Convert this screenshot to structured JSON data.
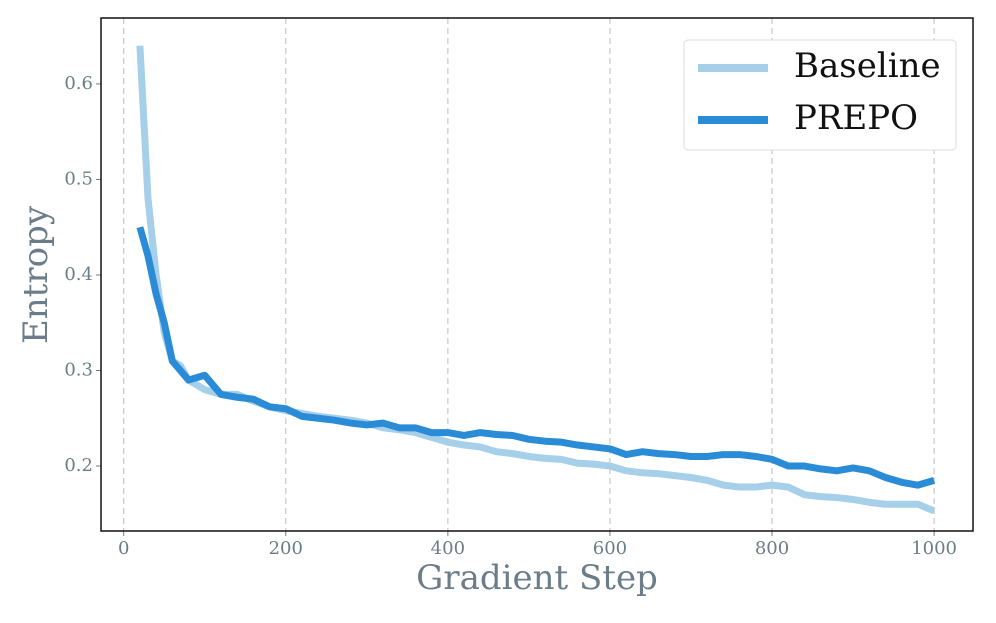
{
  "chart_data": {
    "type": "line",
    "x_label": "Gradient Step",
    "y_label": "Entropy",
    "x": [
      20,
      30,
      40,
      50,
      60,
      70,
      80,
      100,
      120,
      140,
      160,
      180,
      200,
      220,
      240,
      260,
      280,
      300,
      320,
      340,
      360,
      380,
      400,
      420,
      440,
      460,
      480,
      500,
      520,
      540,
      560,
      580,
      600,
      620,
      640,
      660,
      680,
      700,
      720,
      740,
      760,
      780,
      800,
      820,
      840,
      860,
      880,
      900,
      920,
      940,
      960,
      980,
      1000
    ],
    "series": [
      {
        "name": "Baseline",
        "color": "#a6cfea",
        "values": [
          0.64,
          0.48,
          0.4,
          0.34,
          0.31,
          0.305,
          0.29,
          0.28,
          0.275,
          0.275,
          0.268,
          0.262,
          0.258,
          0.255,
          0.252,
          0.25,
          0.248,
          0.245,
          0.24,
          0.238,
          0.235,
          0.23,
          0.225,
          0.222,
          0.22,
          0.215,
          0.213,
          0.21,
          0.208,
          0.207,
          0.203,
          0.202,
          0.2,
          0.195,
          0.193,
          0.192,
          0.19,
          0.188,
          0.185,
          0.18,
          0.178,
          0.178,
          0.18,
          0.178,
          0.17,
          0.168,
          0.167,
          0.165,
          0.162,
          0.16,
          0.16,
          0.16,
          0.153
        ]
      },
      {
        "name": "PREPO",
        "color": "#2a8bd6",
        "values": [
          0.45,
          0.42,
          0.38,
          0.35,
          0.31,
          0.3,
          0.29,
          0.295,
          0.275,
          0.272,
          0.27,
          0.262,
          0.26,
          0.252,
          0.25,
          0.248,
          0.245,
          0.243,
          0.245,
          0.24,
          0.24,
          0.235,
          0.235,
          0.232,
          0.235,
          0.233,
          0.232,
          0.228,
          0.226,
          0.225,
          0.222,
          0.22,
          0.218,
          0.212,
          0.215,
          0.213,
          0.212,
          0.21,
          0.21,
          0.212,
          0.212,
          0.21,
          0.207,
          0.2,
          0.2,
          0.197,
          0.195,
          0.198,
          0.195,
          0.188,
          0.183,
          0.18,
          0.185
        ]
      }
    ],
    "xlim": [
      -28,
      1048
    ],
    "ylim": [
      0.132,
      0.669
    ],
    "xticks": [
      0,
      200,
      400,
      600,
      800,
      1000
    ],
    "yticks": [
      0.2,
      0.3,
      0.4,
      0.5,
      0.6
    ],
    "grid": "x",
    "legend": "upper right"
  }
}
